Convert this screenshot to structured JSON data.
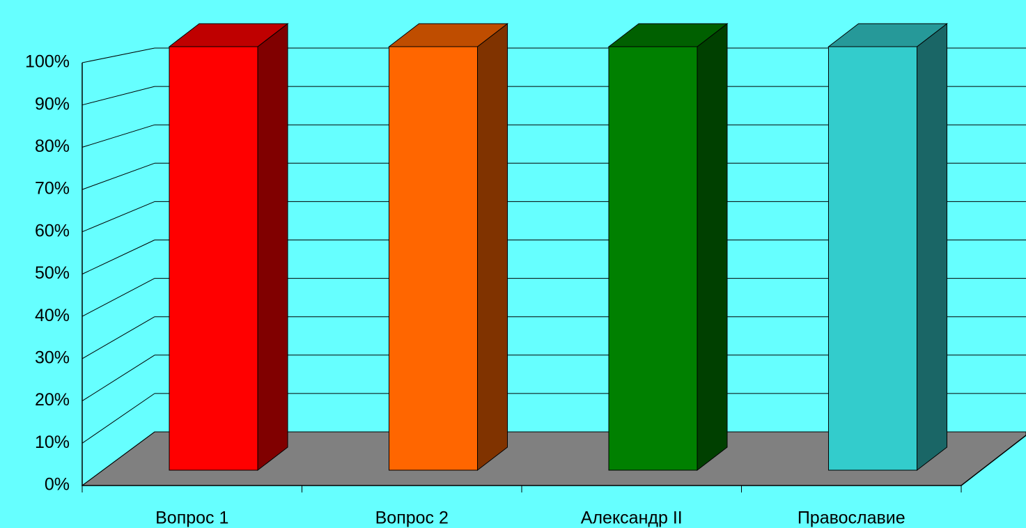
{
  "chart_data": {
    "type": "bar3d",
    "categories": [
      "Вопрос 1",
      "Вопрос 2",
      "Александр II",
      "Православие"
    ],
    "values": [
      100,
      100,
      100,
      100
    ],
    "colors": [
      "#ff0000",
      "#ff6600",
      "#008000",
      "#33cccc"
    ],
    "ylim": [
      0,
      100
    ],
    "yticks": [
      {
        "value": 0,
        "label": "0%"
      },
      {
        "value": 10,
        "label": "10%"
      },
      {
        "value": 20,
        "label": "20%"
      },
      {
        "value": 30,
        "label": "30%"
      },
      {
        "value": 40,
        "label": "40%"
      },
      {
        "value": 50,
        "label": "50%"
      },
      {
        "value": 60,
        "label": "60%"
      },
      {
        "value": 70,
        "label": "70%"
      },
      {
        "value": 80,
        "label": "80%"
      },
      {
        "value": 90,
        "label": "90%"
      },
      {
        "value": 100,
        "label": "100%"
      }
    ],
    "grid": true
  }
}
